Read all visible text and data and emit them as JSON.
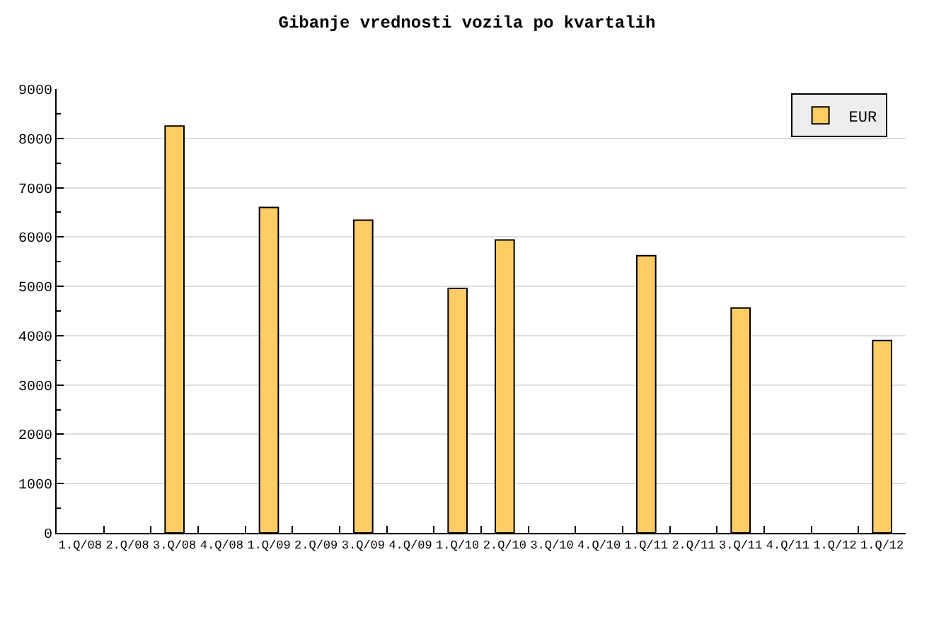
{
  "chart_data": {
    "type": "bar",
    "title": "Gibanje vrednosti vozila po kvartalih",
    "categories": [
      "1.Q/08",
      "2.Q/08",
      "3.Q/08",
      "4.Q/08",
      "1.Q/09",
      "2.Q/09",
      "3.Q/09",
      "4.Q/09",
      "1.Q/10",
      "2.Q/10",
      "3.Q/10",
      "4.Q/10",
      "1.Q/11",
      "2.Q/11",
      "3.Q/11",
      "4.Q/11",
      "1.Q/12",
      "1.Q/12"
    ],
    "series": [
      {
        "name": "EUR",
        "color": "#ffcc66",
        "values": [
          null,
          null,
          8250,
          null,
          6600,
          null,
          6340,
          null,
          4960,
          5940,
          null,
          null,
          5620,
          null,
          4560,
          null,
          null,
          3900
        ]
      }
    ],
    "ylim": [
      0,
      9000
    ],
    "yticks": [
      0,
      {
        "value": 500,
        "label": null
      },
      1000,
      {
        "value": 1500,
        "label": null
      },
      2000,
      {
        "value": 2500,
        "label": null
      },
      3000,
      {
        "value": 3500,
        "label": null
      },
      4000,
      {
        "value": 4500,
        "label": null
      },
      5000,
      {
        "value": 5500,
        "label": null
      },
      6000,
      {
        "value": 6500,
        "label": null
      },
      7000,
      {
        "value": 7500,
        "label": null
      },
      8000,
      {
        "value": 8500,
        "label": null
      },
      9000
    ],
    "grid": "y",
    "legend": "top right"
  }
}
